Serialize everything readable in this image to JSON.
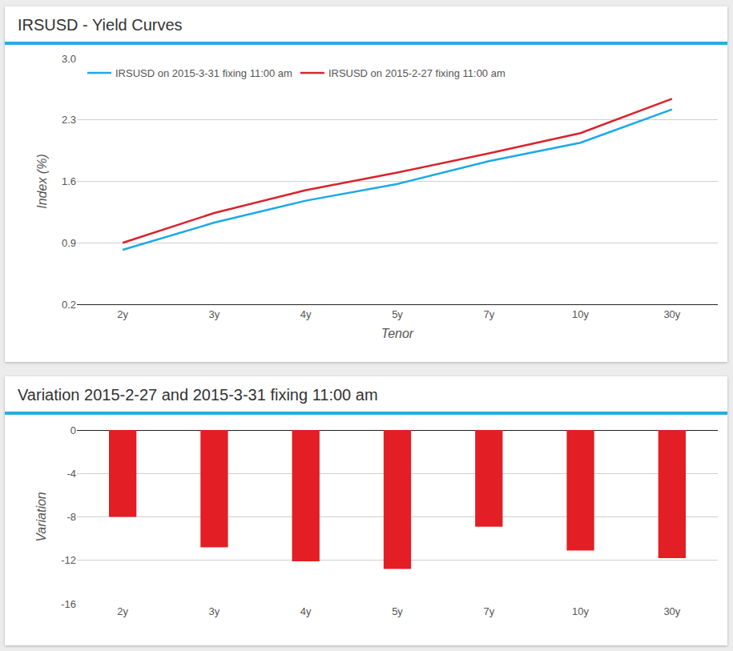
{
  "chart_data": [
    {
      "type": "line",
      "title": "IRSUSD - Yield Curves",
      "x_label": "Tenor",
      "y_label": "Index (%)",
      "categories": [
        "2y",
        "3y",
        "4y",
        "5y",
        "7y",
        "10y",
        "30y"
      ],
      "series": [
        {
          "name": "IRSUSD on 2015-3-31 fixing 11:00 am",
          "color": "#1aa9e8",
          "values": [
            0.82,
            1.13,
            1.38,
            1.57,
            1.83,
            2.04,
            2.42
          ]
        },
        {
          "name": "IRSUSD on 2015-2-27 fixing 11:00 am",
          "color": "#d9232d",
          "values": [
            0.9,
            1.24,
            1.5,
            1.7,
            1.92,
            2.15,
            2.54
          ]
        }
      ],
      "ylim": [
        0.2,
        3.0
      ],
      "yticks": [
        0.2,
        0.9,
        1.6,
        2.3,
        {
          "value": 3.0,
          "label": "3.0"
        }
      ],
      "grid": true,
      "legend": "top left"
    },
    {
      "type": "bar",
      "title": "Variation 2015-2-27 and 2015-3-31 fixing 11:00 am",
      "y_label": "Variation",
      "categories": [
        "2y",
        "3y",
        "4y",
        "5y",
        "7y",
        "10y",
        "30y"
      ],
      "values": [
        -8.0,
        -10.8,
        -12.1,
        -12.8,
        -8.9,
        -11.1,
        -11.8
      ],
      "color": "#e31e24",
      "ylim": [
        -16,
        0
      ],
      "yticks": [
        -16,
        -12,
        -8,
        -4,
        0
      ],
      "grid": true
    }
  ]
}
